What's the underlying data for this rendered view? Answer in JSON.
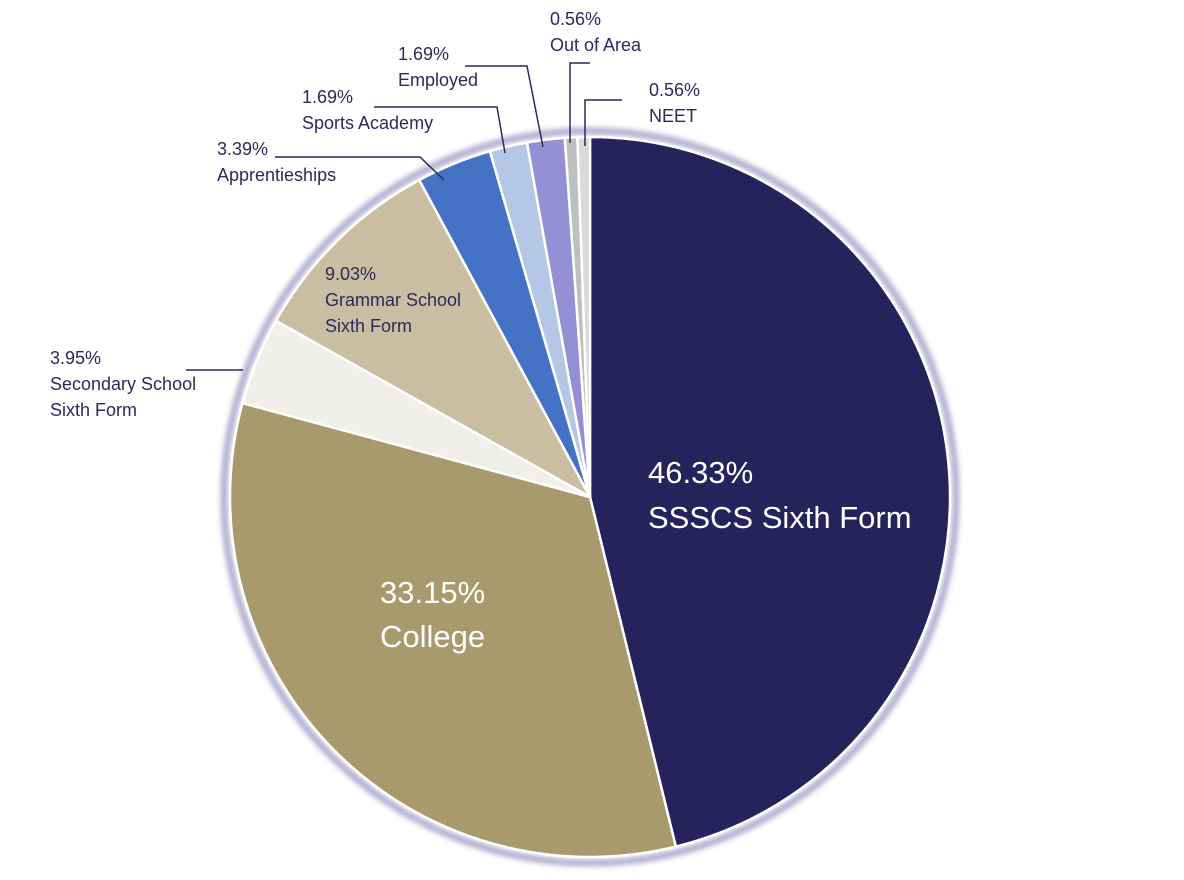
{
  "chart_data": {
    "type": "pie",
    "title": "",
    "start": "12 o'clock",
    "direction": "clockwise",
    "slices": [
      {
        "value": 46.33,
        "pct": "46.33%",
        "label": "SSSCS Sixth Form",
        "color": "#27225c"
      },
      {
        "value": 33.15,
        "pct": "33.15%",
        "label": "College",
        "color": "#a99a6d"
      },
      {
        "value": 3.95,
        "pct": "3.95%",
        "label": "Secondary School Sixth Form",
        "color": "#f1efea"
      },
      {
        "value": 9.03,
        "pct": "9.03%",
        "label": "Grammar School Sixth Form",
        "color": "#c9bea1"
      },
      {
        "value": 3.39,
        "pct": "3.39%",
        "label": "Apprentieships",
        "color": "#4472c4"
      },
      {
        "value": 1.69,
        "pct": "1.69%",
        "label": "Sports Academy",
        "color": "#b4c7e7"
      },
      {
        "value": 1.69,
        "pct": "1.69%",
        "label": "Employed",
        "color": "#9590d6"
      },
      {
        "value": 0.56,
        "pct": "0.56%",
        "label": "Out of Area",
        "color": "#bfbfbf"
      },
      {
        "value": 0.56,
        "pct": "0.56%",
        "label": "NEET",
        "color": "#d9d9d9"
      }
    ],
    "label_lines": [
      [
        "46.33%",
        "SSSCS Sixth Form"
      ],
      [
        "33.15%",
        "College"
      ],
      [
        "3.95%",
        "Secondary School",
        "Sixth Form"
      ],
      [
        "9.03%",
        "Grammar School",
        "Sixth Form"
      ],
      [
        "3.39%",
        "Apprentieships"
      ],
      [
        "1.69%",
        "Sports Academy"
      ],
      [
        "1.69%",
        "Employed"
      ],
      [
        "0.56%",
        "Out of Area"
      ],
      [
        "0.56%",
        "NEET"
      ]
    ],
    "colors": {
      "border": "#ffffff",
      "glow": "#8a86b8",
      "leader": "#2b2a5a",
      "label_text": "#2b2a5a"
    }
  }
}
